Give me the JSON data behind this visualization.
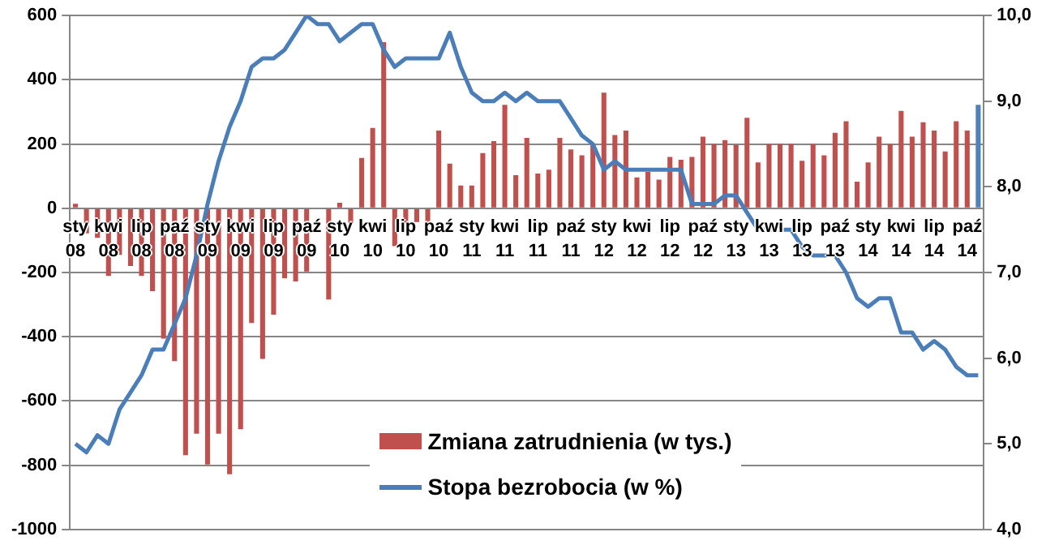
{
  "chart_data": {
    "type": "bar",
    "categories": [
      "sty 08",
      null,
      null,
      "kwi 08",
      null,
      null,
      "lip 08",
      null,
      null,
      "paź 08",
      null,
      null,
      "sty 09",
      null,
      null,
      "kwi 09",
      null,
      null,
      "lip 09",
      null,
      null,
      "paź 09",
      null,
      null,
      "sty 10",
      null,
      null,
      "kwi 10",
      null,
      null,
      "lip 10",
      null,
      null,
      "paź 10",
      null,
      null,
      "sty 11",
      null,
      null,
      "kwi 11",
      null,
      null,
      "lip 11",
      null,
      null,
      "paź 11",
      null,
      null,
      "sty 12",
      null,
      null,
      "kwi 12",
      null,
      null,
      "lip 12",
      null,
      null,
      "paź 12",
      null,
      null,
      "sty 13",
      null,
      null,
      "kwi 13",
      null,
      null,
      "lip 13",
      null,
      null,
      "paź 13",
      null,
      null,
      "sty 14",
      null,
      null,
      "kwi 14",
      null,
      null,
      "lip 14",
      null,
      null,
      "paź 14",
      null
    ],
    "series": [
      {
        "name": "Zmiana zatrudnienia (w tys.)",
        "type": "bar",
        "color": "#c0504d",
        "colors": [
          "#c0504d",
          "#c0504d",
          "#c0504d",
          "#c0504d",
          "#c0504d",
          "#c0504d",
          "#c0504d",
          "#c0504d",
          "#c0504d",
          "#c0504d",
          "#c0504d",
          "#c0504d",
          "#c0504d",
          "#c0504d",
          "#c0504d",
          "#c0504d",
          "#c0504d",
          "#c0504d",
          "#c0504d",
          "#c0504d",
          "#c0504d",
          "#c0504d",
          "#c0504d",
          "#c0504d",
          "#c0504d",
          "#c0504d",
          "#c0504d",
          "#c0504d",
          "#c0504d",
          "#c0504d",
          "#c0504d",
          "#c0504d",
          "#c0504d",
          "#c0504d",
          "#c0504d",
          "#c0504d",
          "#c0504d",
          "#c0504d",
          "#c0504d",
          "#c0504d",
          "#c0504d",
          "#c0504d",
          "#c0504d",
          "#c0504d",
          "#c0504d",
          "#c0504d",
          "#c0504d",
          "#c0504d",
          "#c0504d",
          "#c0504d",
          "#c0504d",
          "#c0504d",
          "#c0504d",
          "#c0504d",
          "#c0504d",
          "#c0504d",
          "#c0504d",
          "#c0504d",
          "#c0504d",
          "#c0504d",
          "#c0504d",
          "#c0504d",
          "#c0504d",
          "#c0504d",
          "#c0504d",
          "#c0504d",
          "#c0504d",
          "#c0504d",
          "#c0504d",
          "#c0504d",
          "#c0504d",
          "#c0504d",
          "#c0504d",
          "#c0504d",
          "#c0504d",
          "#c0504d",
          "#c0504d",
          "#c0504d",
          "#c0504d",
          "#c0504d",
          "#c0504d",
          "#c0504d",
          "#4f81bd"
        ],
        "values": [
          14,
          -78,
          -92,
          -211,
          -145,
          -180,
          -211,
          -258,
          -406,
          -476,
          -769,
          -702,
          -798,
          -702,
          -828,
          -688,
          -357,
          -469,
          -331,
          -218,
          -228,
          -197,
          0,
          -284,
          17,
          -49,
          157,
          250,
          517,
          -118,
          -61,
          -43,
          -57,
          242,
          139,
          71,
          71,
          172,
          209,
          322,
          103,
          219,
          108,
          120,
          219,
          183,
          165,
          197,
          360,
          228,
          242,
          96,
          113,
          89,
          160,
          151,
          160,
          223,
          200,
          212,
          198,
          282,
          143,
          200,
          200,
          200,
          148,
          200,
          165,
          235,
          271,
          83,
          143,
          223,
          200,
          303,
          223,
          268,
          242,
          177,
          271,
          242,
          322
        ]
      },
      {
        "name": "Stopa bezrobocia (w %)",
        "type": "line",
        "axis": "y2",
        "color": "#4a7ebb",
        "values": [
          5.0,
          4.9,
          5.1,
          5.0,
          5.4,
          5.6,
          5.8,
          6.1,
          6.1,
          6.4,
          6.7,
          7.2,
          7.8,
          8.3,
          8.7,
          9.0,
          9.4,
          9.5,
          9.5,
          9.6,
          9.8,
          10.0,
          9.9,
          9.9,
          9.7,
          9.8,
          9.9,
          9.9,
          9.6,
          9.4,
          9.5,
          9.5,
          9.5,
          9.5,
          9.8,
          9.4,
          9.1,
          9.0,
          9.0,
          9.1,
          9.0,
          9.1,
          9.0,
          9.0,
          9.0,
          8.8,
          8.6,
          8.5,
          8.2,
          8.3,
          8.2,
          8.2,
          8.2,
          8.2,
          8.2,
          8.2,
          7.8,
          7.8,
          7.8,
          7.9,
          7.9,
          7.7,
          7.5,
          7.5,
          7.5,
          7.5,
          7.3,
          7.2,
          7.2,
          7.2,
          7.0,
          6.7,
          6.6,
          6.7,
          6.7,
          6.3,
          6.3,
          6.1,
          6.2,
          6.1,
          5.9,
          5.8,
          5.8
        ]
      }
    ],
    "ylim": [
      -1000,
      600
    ],
    "yticks": [
      -1000,
      -800,
      -600,
      -400,
      -200,
      0,
      200,
      400,
      600
    ],
    "y2lim": [
      4,
      10
    ],
    "y2ticks": [
      {
        "value": 4,
        "label": "4,0"
      },
      {
        "value": 5,
        "label": "5,0"
      },
      {
        "value": 6,
        "label": "6,0"
      },
      {
        "value": 7,
        "label": "7,0"
      },
      {
        "value": 8,
        "label": "8,0"
      },
      {
        "value": 9,
        "label": "9,0"
      },
      {
        "value": 10,
        "label": "10,0"
      }
    ],
    "grid": "y",
    "legend": "bottom"
  }
}
